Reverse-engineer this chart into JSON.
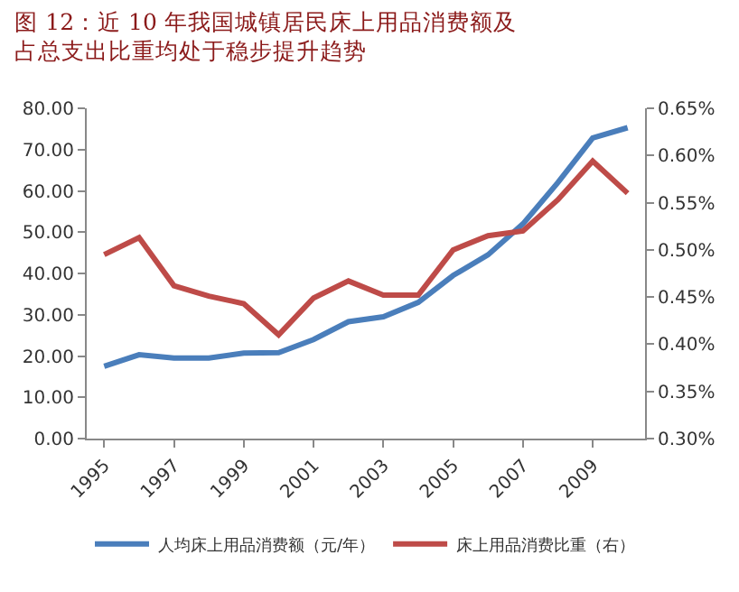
{
  "chart_data": {
    "type": "line",
    "title": "图 12：近 10 年我国城镇居民床上用品消费额及占总支出比重均处于稳步提升趋势",
    "x": [
      1995,
      1996,
      1997,
      1998,
      1999,
      2000,
      2001,
      2002,
      2003,
      2004,
      2005,
      2006,
      2007,
      2008,
      2009,
      2010
    ],
    "series": [
      {
        "name": "人均床上用品消费额（元/年）",
        "color": "#4a7ebb",
        "values": [
          17.5,
          20.3,
          19.5,
          19.5,
          20.7,
          20.8,
          24.0,
          28.3,
          29.5,
          33.0,
          39.5,
          44.5,
          52.0,
          62.0,
          72.8,
          75.3
        ]
      },
      {
        "name": "床上用品消费比重（右）",
        "color": "#be4b48",
        "axis": "y2",
        "values": [
          0.495,
          0.513,
          0.462,
          0.451,
          0.443,
          0.41,
          0.449,
          0.467,
          0.452,
          0.452,
          0.5,
          0.515,
          0.52,
          0.553,
          0.594,
          0.56
        ]
      }
    ],
    "xlim": [
      1994.5,
      2010.5
    ],
    "xticks": [
      1995,
      1997,
      1999,
      2001,
      2003,
      2005,
      2007,
      2009
    ],
    "ylim": [
      0,
      80
    ],
    "yticks": [
      {
        "value": 0,
        "label": "0.00"
      },
      {
        "value": 10,
        "label": "10.00"
      },
      {
        "value": 20,
        "label": "20.00"
      },
      {
        "value": 30,
        "label": "30.00"
      },
      {
        "value": 40,
        "label": "40.00"
      },
      {
        "value": 50,
        "label": "50.00"
      },
      {
        "value": 60,
        "label": "60.00"
      },
      {
        "value": 70,
        "label": "70.00"
      },
      {
        "value": 80,
        "label": "80.00"
      }
    ],
    "y2lim": [
      0.3,
      0.65
    ],
    "y2ticks": [
      {
        "value": 0.3,
        "label": "0.30%"
      },
      {
        "value": 0.35,
        "label": "0.35%"
      },
      {
        "value": 0.4,
        "label": "0.40%"
      },
      {
        "value": 0.45,
        "label": "0.45%"
      },
      {
        "value": 0.5,
        "label": "0.50%"
      },
      {
        "value": 0.55,
        "label": "0.55%"
      },
      {
        "value": 0.6,
        "label": "0.60%"
      },
      {
        "value": 0.65,
        "label": "0.65%"
      }
    ],
    "legend": "bottom",
    "marker": "none",
    "line_style": "solid"
  }
}
